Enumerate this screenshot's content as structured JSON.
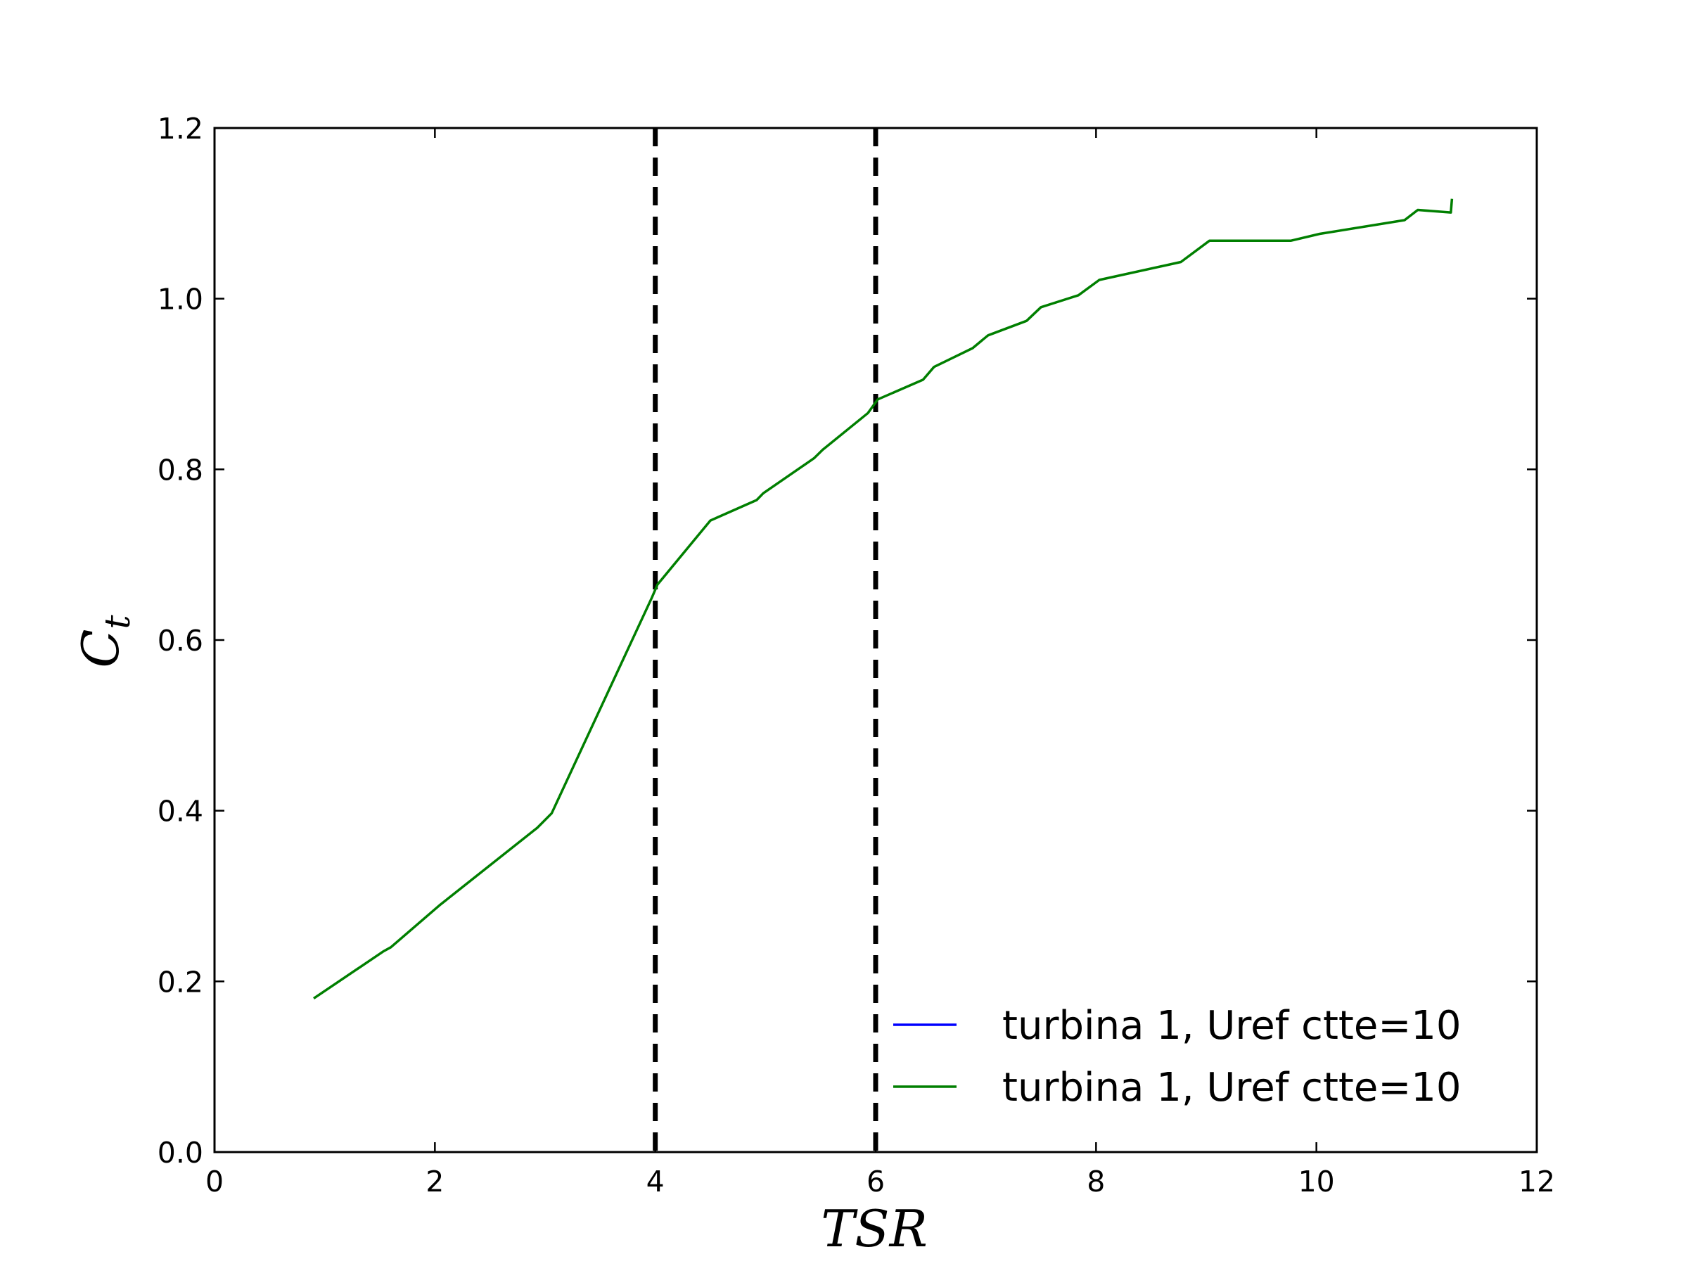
{
  "chart_data": {
    "type": "line",
    "title": "",
    "xlabel": "TSR",
    "ylabel_main": "C",
    "ylabel_sub": "t",
    "xlim": [
      0,
      12
    ],
    "ylim": [
      0,
      1.2
    ],
    "x_ticks": [
      "0",
      "2",
      "4",
      "6",
      "8",
      "10",
      "12"
    ],
    "x_tick_values": [
      0,
      2,
      4,
      6,
      8,
      10,
      12
    ],
    "y_ticks": [
      "0.0",
      "0.2",
      "0.4",
      "0.6",
      "0.8",
      "1.0",
      "1.2"
    ],
    "y_tick_values": [
      0,
      0.2,
      0.4,
      0.6,
      0.8,
      1.0,
      1.2
    ],
    "grid": false,
    "legend_position": "lower-right",
    "reference_lines": [
      {
        "x": 4,
        "style": "dashed",
        "color": "#000000"
      },
      {
        "x": 6,
        "style": "dashed",
        "color": "#000000"
      }
    ],
    "series": [
      {
        "name": "turbina 1, Uref ctte=10",
        "color": "#0000ff",
        "x": [],
        "y": []
      },
      {
        "name": "turbina 1, Uref ctte=10",
        "color": "#007f00",
        "x": [
          0.9,
          1.53,
          1.6,
          2.05,
          2.93,
          3.06,
          3.97,
          4.02,
          4.5,
          4.92,
          4.98,
          5.44,
          5.52,
          5.93,
          6.02,
          6.43,
          6.53,
          6.88,
          7.02,
          7.37,
          7.5,
          7.84,
          8.03,
          8.77,
          9.03,
          9.77,
          10.03,
          10.8,
          10.92,
          11.22,
          11.23
        ],
        "y": [
          0.18,
          0.235,
          0.24,
          0.29,
          0.38,
          0.397,
          0.65,
          0.665,
          0.74,
          0.764,
          0.772,
          0.813,
          0.823,
          0.866,
          0.882,
          0.905,
          0.92,
          0.942,
          0.957,
          0.974,
          0.99,
          1.004,
          1.022,
          1.043,
          1.068,
          1.068,
          1.076,
          1.092,
          1.104,
          1.101,
          1.117
        ]
      }
    ]
  }
}
